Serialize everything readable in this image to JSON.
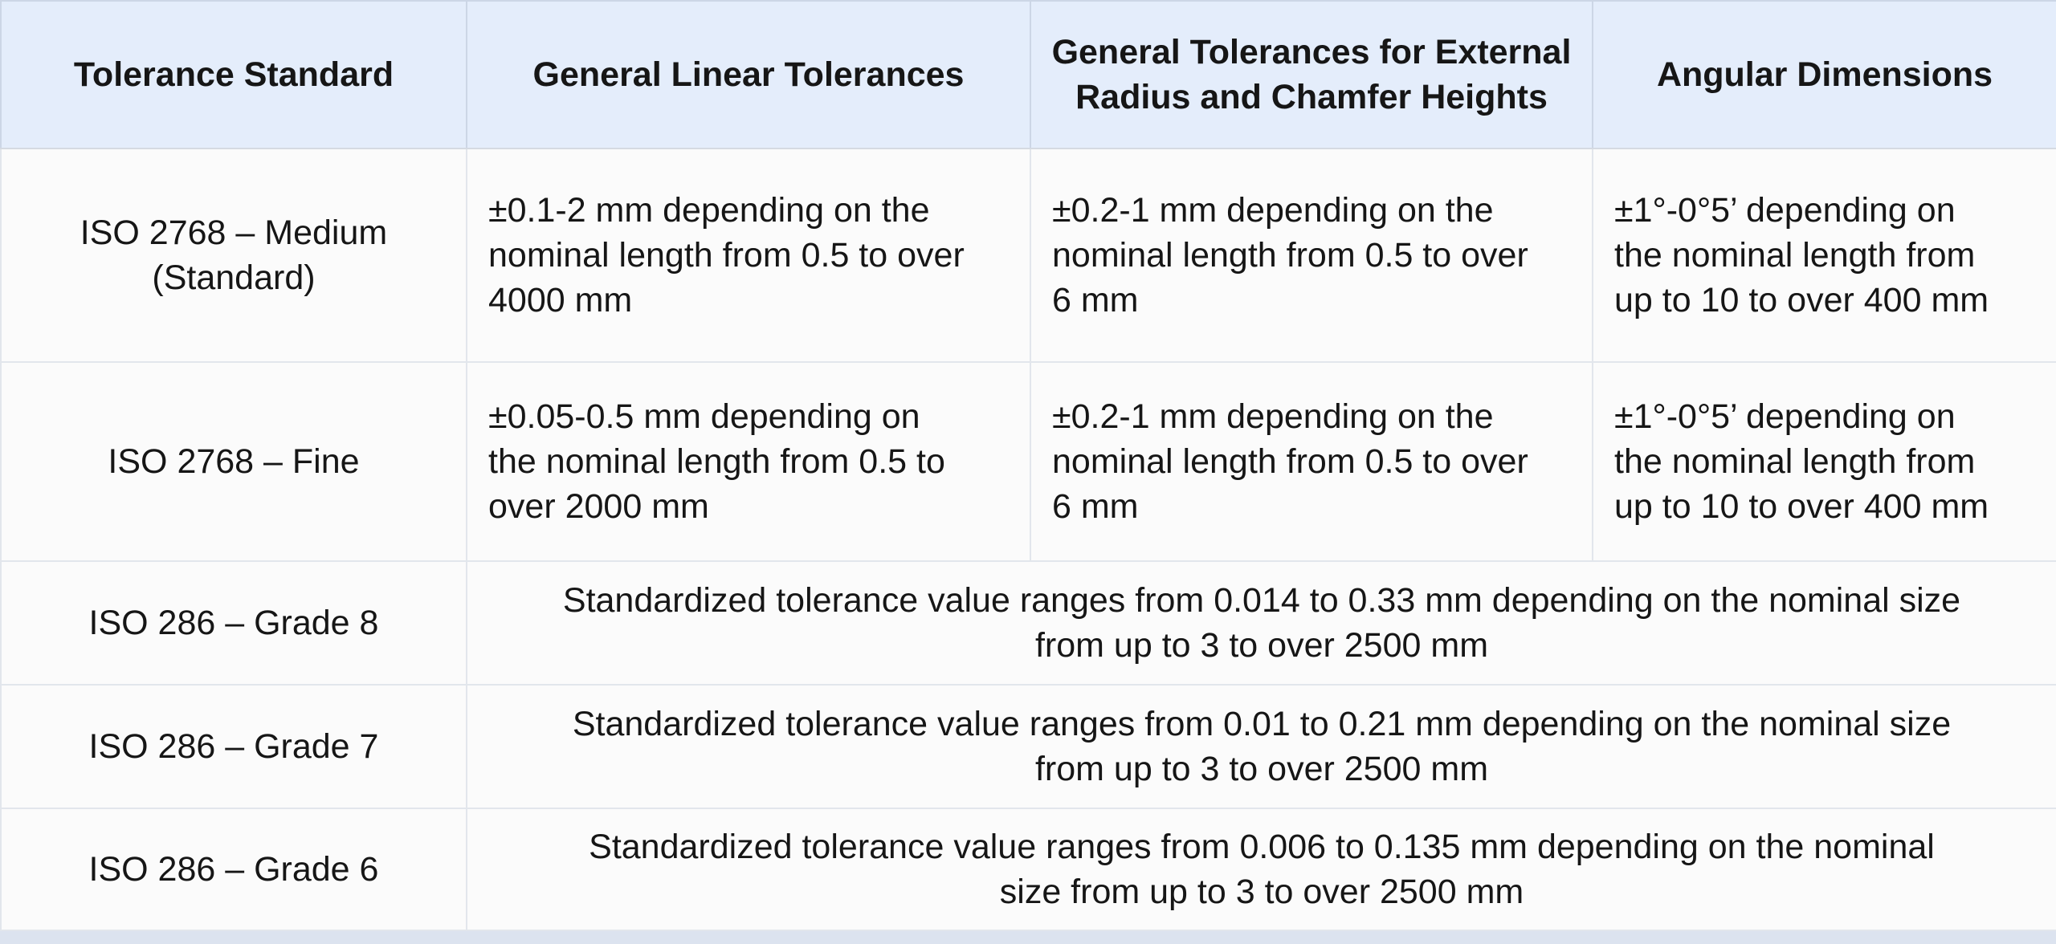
{
  "colors": {
    "header_bg": "#e4edfb",
    "body_bg": "#fbfbfb",
    "inner_border": "#e2e6ec",
    "outer_border": "#ccd5e3",
    "page_bg": "#dce3ef",
    "text": "#161616"
  },
  "table": {
    "headers": [
      {
        "label": "Tolerance Standard"
      },
      {
        "label": "General Linear Tolerances"
      },
      {
        "label": "General Tolerances for External\nRadius and Chamfer Heights"
      },
      {
        "label": "Angular Dimensions"
      }
    ],
    "rows": [
      {
        "standard": "ISO 2768 – Medium\n(Standard)",
        "linear": "±0.1-2 mm depending on the\nnominal length from 0.5 to over\n4000 mm",
        "radius": "±0.2-1 mm depending on the\nnominal length from 0.5 to over\n6 mm",
        "angular": "±1°-0°5’ depending on\nthe nominal length from\nup to 10 to over 400 mm"
      },
      {
        "standard": "ISO 2768 – Fine",
        "linear": "±0.05-0.5 mm depending on\nthe nominal length from 0.5 to\nover 2000 mm",
        "radius": "±0.2-1 mm depending on the\nnominal length from 0.5 to over\n6 mm",
        "angular": "±1°-0°5’ depending on\nthe nominal length from\nup to 10 to over 400 mm"
      },
      {
        "standard": "ISO 286 – Grade 8",
        "merged": "Standardized tolerance value ranges from 0.014 to 0.33 mm depending on the nominal size\nfrom up to 3 to over 2500 mm"
      },
      {
        "standard": "ISO 286 – Grade 7",
        "merged": "Standardized tolerance value ranges from 0.01 to 0.21 mm depending on the nominal size\nfrom up to 3 to over 2500 mm"
      },
      {
        "standard": "ISO 286 – Grade 6",
        "merged": "Standardized tolerance value ranges from 0.006 to 0.135 mm depending on the nominal\nsize from up to 3 to over 2500 mm"
      }
    ]
  },
  "chart_data": {
    "type": "table",
    "title": "",
    "columns": [
      "Tolerance Standard",
      "General Linear Tolerances",
      "General Tolerances for External Radius and Chamfer Heights",
      "Angular Dimensions"
    ],
    "rows": [
      [
        "ISO 2768 – Medium (Standard)",
        "±0.1-2 mm depending on the nominal length from 0.5 to over 4000 mm",
        "±0.2-1 mm depending on the nominal length from 0.5 to over 6 mm",
        "±1°-0°5’ depending on the nominal length from up to 10 to over 400 mm"
      ],
      [
        "ISO 2768 – Fine",
        "±0.05-0.5 mm depending on the nominal length from 0.5 to over 2000 mm",
        "±0.2-1 mm depending on the nominal length from 0.5 to over 6 mm",
        "±1°-0°5’ depending on the nominal length from up to 10 to over 400 mm"
      ],
      [
        "ISO 286 – Grade 8",
        "Standardized tolerance value ranges from 0.014 to 0.33 mm depending on the nominal size from up to 3 to over 2500 mm"
      ],
      [
        "ISO 286 – Grade 7",
        "Standardized tolerance value ranges from 0.01 to 0.21 mm depending on the nominal size from up to 3 to over 2500 mm"
      ],
      [
        "ISO 286 – Grade 6",
        "Standardized tolerance value ranges from 0.006 to 0.135 mm depending on the nominal size from up to 3 to over 2500 mm"
      ]
    ],
    "layout": {
      "header_row_highlighted": true,
      "last_three_rows_span_columns_2_to_4": true,
      "first_column_alignment": "center",
      "detail_columns_alignment": "left",
      "spanned_cells_alignment": "center"
    }
  }
}
